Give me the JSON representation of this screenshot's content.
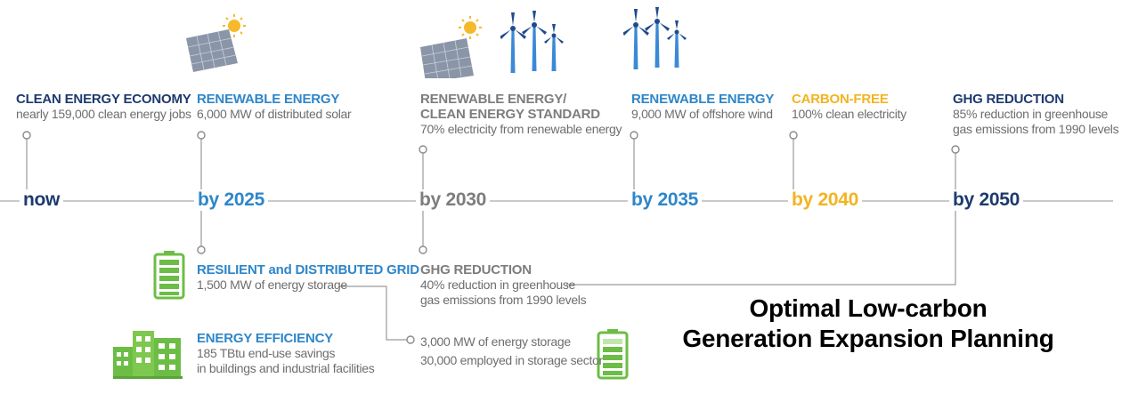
{
  "colors": {
    "navy": "#1d3a6e",
    "blue": "#2e86c9",
    "gray": "#7d7d7d",
    "gold": "#f2b420",
    "green": "#6cbd45",
    "line": "#9a9a9a"
  },
  "milestones": [
    {
      "label": "now",
      "color": "navy"
    },
    {
      "label": "by 2025",
      "color": "blue"
    },
    {
      "label": "by 2030",
      "color": "gray"
    },
    {
      "label": "by 2035",
      "color": "blue"
    },
    {
      "label": "by 2040",
      "color": "gold"
    },
    {
      "label": "by 2050",
      "color": "navy"
    }
  ],
  "goals_top": [
    {
      "title": "CLEAN ENERGY ECONOMY",
      "desc": [
        "nearly 159,000 clean energy jobs"
      ]
    },
    {
      "title": "RENEWABLE ENERGY",
      "desc": [
        "6,000 MW of distributed solar"
      ]
    },
    {
      "title": "RENEWABLE ENERGY/",
      "title2": "CLEAN ENERGY STANDARD",
      "desc": [
        "70% electricity from renewable energy"
      ]
    },
    {
      "title": "RENEWABLE ENERGY",
      "desc": [
        "9,000 MW of offshore wind"
      ]
    },
    {
      "title": "CARBON-FREE",
      "desc": [
        "100% clean electricity"
      ]
    },
    {
      "title": "GHG REDUCTION",
      "desc": [
        "85% reduction in greenhouse",
        "gas emissions from 1990 levels"
      ]
    }
  ],
  "goals_bottom": [
    {
      "title": "RESILIENT and DISTRIBUTED GRID",
      "desc": [
        "1,500 MW of energy storage"
      ]
    },
    {
      "title": "GHG REDUCTION",
      "desc": [
        "40% reduction in greenhouse",
        "gas emissions from 1990 levels"
      ]
    },
    {
      "title": "ENERGY EFFICIENCY",
      "desc": [
        "185 TBtu end-use savings",
        "in buildings and industrial facilities"
      ]
    },
    {
      "title": "",
      "desc": [
        "3,000 MW of energy storage",
        "30,000 employed in storage sector"
      ]
    }
  ],
  "icons": [
    "solar-panel-icon",
    "sun-icon",
    "wind-turbine-icon",
    "battery-icon",
    "buildings-icon"
  ],
  "caption": {
    "line1": "Optimal Low-carbon",
    "line2": "Generation Expansion Planning"
  }
}
